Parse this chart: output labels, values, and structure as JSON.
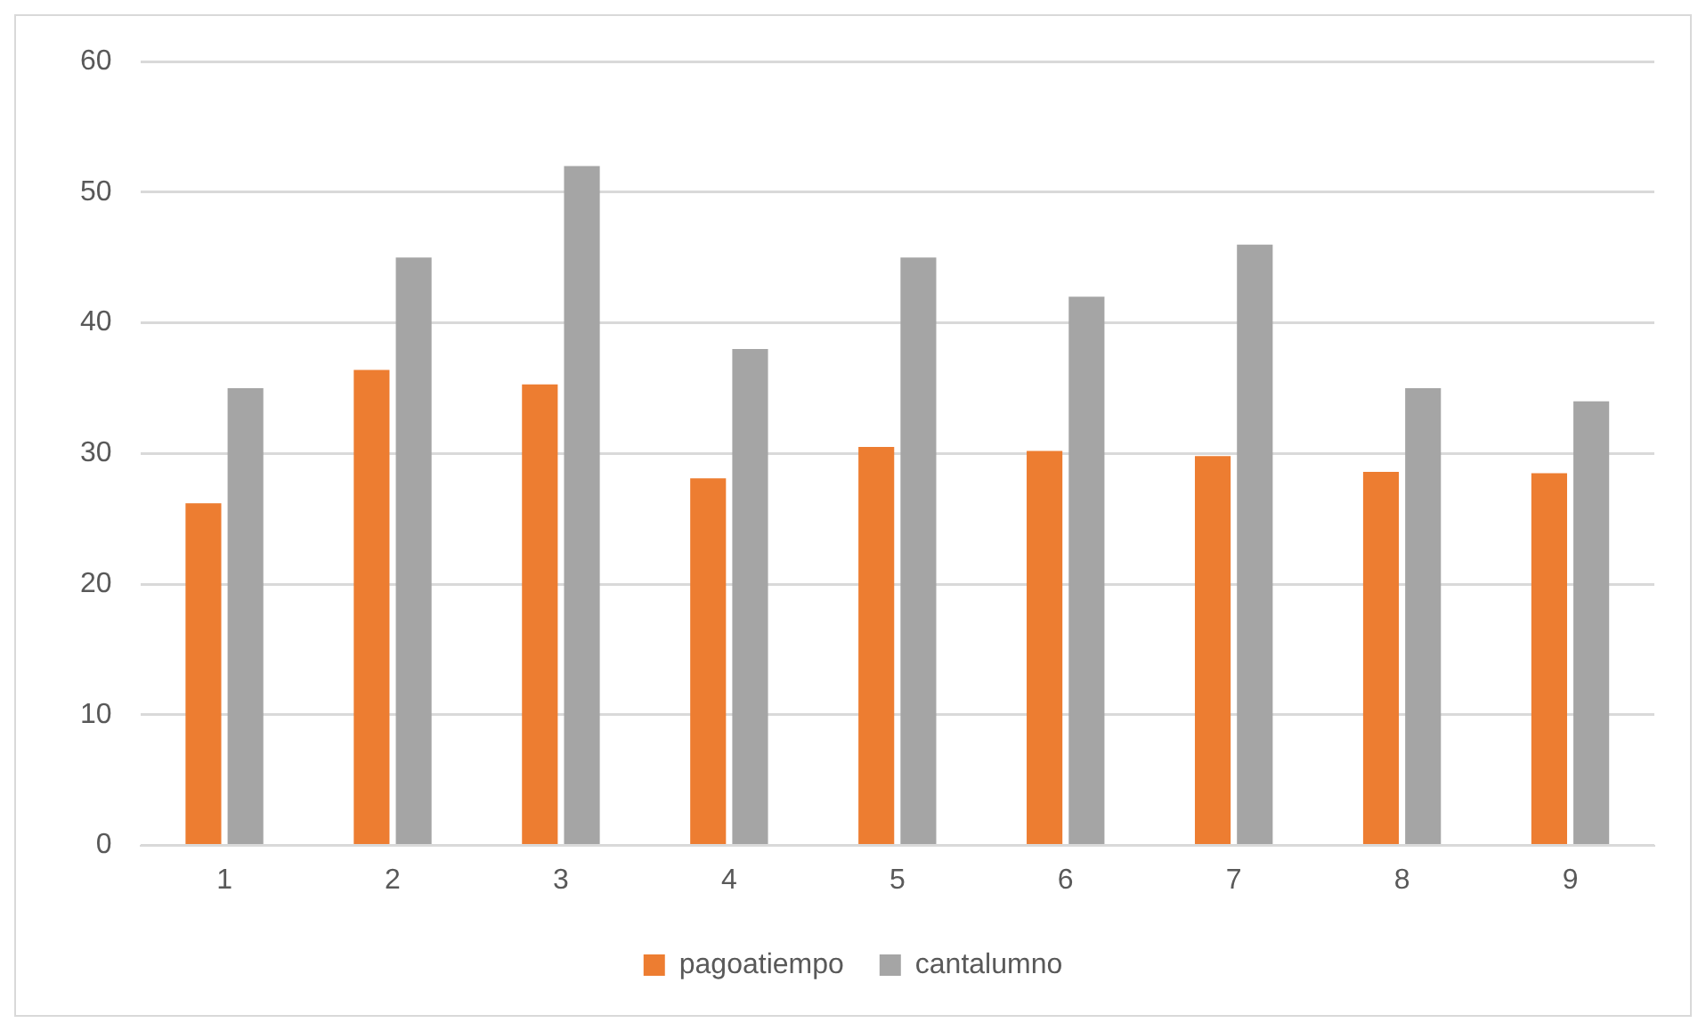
{
  "chart_data": {
    "type": "bar",
    "categories": [
      "1",
      "2",
      "3",
      "4",
      "5",
      "6",
      "7",
      "8",
      "9"
    ],
    "series": [
      {
        "name": "pagoatiempo",
        "color": "#ed7d31",
        "values": [
          26.2,
          36.4,
          35.3,
          28.1,
          30.5,
          30.2,
          29.8,
          28.6,
          28.5
        ]
      },
      {
        "name": "cantalumno",
        "color": "#a5a5a5",
        "values": [
          35,
          45,
          52,
          38,
          45,
          42,
          46,
          35,
          34
        ]
      }
    ],
    "ylim": [
      0,
      60
    ],
    "yticks": [
      0,
      10,
      20,
      30,
      40,
      50,
      60
    ],
    "grid": "y",
    "legend": "bottom"
  }
}
